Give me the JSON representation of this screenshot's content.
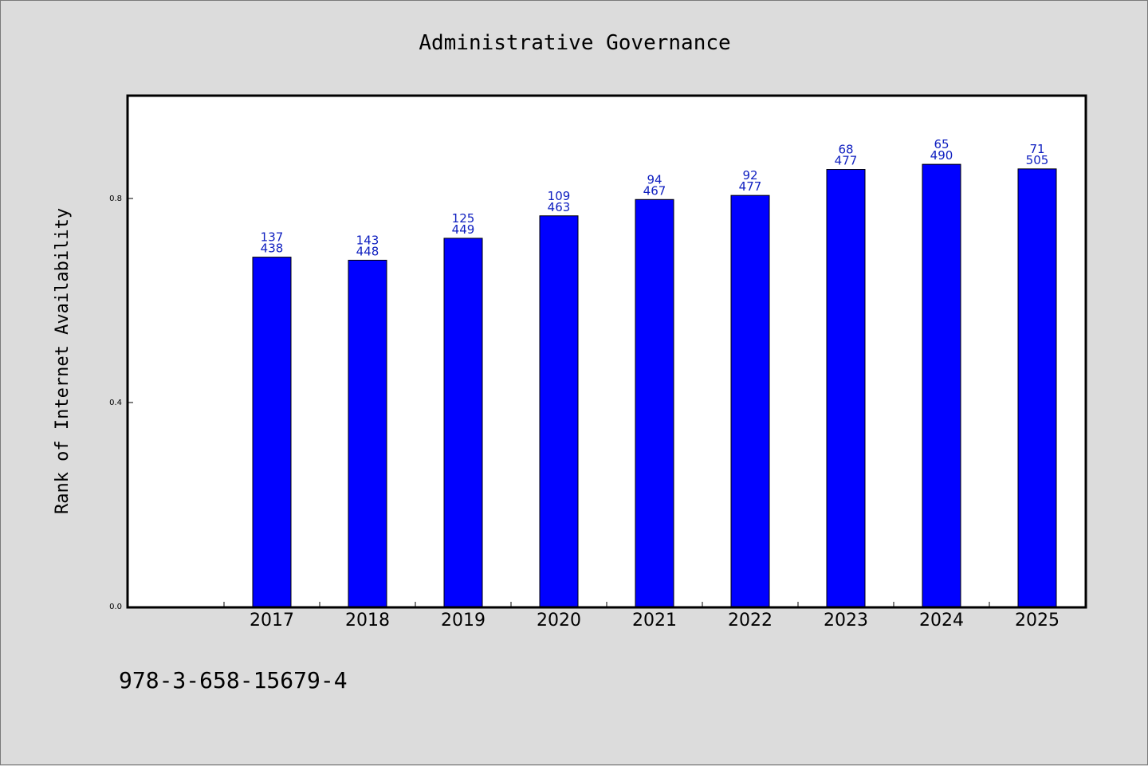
{
  "chart_data": {
    "type": "bar",
    "title": "Administrative Governance",
    "xlabel": "",
    "ylabel": "Rank of Internet Availability",
    "categories": [
      "2017",
      "2018",
      "2019",
      "2020",
      "2021",
      "2022",
      "2023",
      "2024",
      "2025"
    ],
    "series": [
      {
        "values": [
          0.685,
          0.679,
          0.722,
          0.766,
          0.798,
          0.806,
          0.857,
          0.867,
          0.858
        ],
        "labels_top": [
          "137",
          "143",
          "125",
          "109",
          "94",
          "92",
          "68",
          "65",
          "71"
        ],
        "labels_bottom": [
          "438",
          "448",
          "449",
          "463",
          "467",
          "477",
          "477",
          "490",
          "505"
        ],
        "color": "#0000ff"
      }
    ],
    "ylim": [
      0.0,
      1.0
    ],
    "yticks": [
      "0.0",
      "0.4",
      "0.8"
    ],
    "ytick_values": [
      0.0,
      0.4,
      0.8
    ],
    "grid": false,
    "legend": "none"
  },
  "footnote": "978-3-658-15679-4",
  "colors": {
    "background": "#dcdcdc",
    "plot_background": "#ffffff",
    "bar": "#0000ff",
    "data_label": "#1020c0"
  }
}
